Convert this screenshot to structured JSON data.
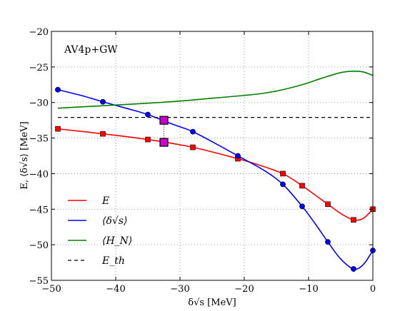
{
  "chart_data": {
    "type": "line",
    "title": "AV4p+GW",
    "xlabel": "δ√s [MeV]",
    "ylabel": "E, ⟨δ√s⟩ [MeV]",
    "xlim": [
      -50,
      0
    ],
    "ylim": [
      -55,
      -20
    ],
    "xticks": [
      -50,
      -40,
      -30,
      -20,
      -10,
      0
    ],
    "yticks": [
      -55,
      -50,
      -45,
      -40,
      -35,
      -30,
      -25,
      -20
    ],
    "grid": true,
    "legend_position": "lower-left",
    "series": [
      {
        "name": "E",
        "color": "#ff0000",
        "marker": "square",
        "x": [
          -49,
          -42,
          -35,
          -28,
          -21,
          -14,
          -11,
          -7,
          -3,
          0
        ],
        "y": [
          -33.7,
          -34.4,
          -35.2,
          -36.3,
          -37.9,
          -40.0,
          -41.7,
          -44.3,
          -46.5,
          -45.0
        ],
        "curve": {
          "x": [
            -49,
            -42,
            -35,
            -28,
            -21,
            -18,
            -14,
            -11,
            -9,
            -7,
            -5,
            -3,
            -1.5,
            0
          ],
          "y": [
            -33.7,
            -34.4,
            -35.2,
            -36.3,
            -37.9,
            -38.7,
            -40.0,
            -41.7,
            -43.0,
            -44.3,
            -45.6,
            -46.5,
            -46.3,
            -45.0
          ]
        }
      },
      {
        "name": "⟨δ√s⟩",
        "color": "#0000ff",
        "marker": "circle",
        "x": [
          -49,
          -42,
          -35,
          -28,
          -21,
          -14,
          -11,
          -7,
          -3,
          0
        ],
        "y": [
          -28.2,
          -29.9,
          -31.7,
          -34.1,
          -37.5,
          -41.5,
          -44.6,
          -49.6,
          -53.4,
          -50.8
        ],
        "curve": {
          "x": [
            -49,
            -45,
            -42,
            -38,
            -35,
            -31,
            -28,
            -24,
            -21,
            -17,
            -14,
            -11,
            -9,
            -7,
            -5,
            -3,
            -1.5,
            0
          ],
          "y": [
            -28.2,
            -29.1,
            -29.9,
            -30.9,
            -31.7,
            -33.1,
            -34.1,
            -36.0,
            -37.5,
            -39.5,
            -41.5,
            -44.6,
            -47.0,
            -49.6,
            -52.0,
            -53.4,
            -52.8,
            -50.8
          ]
        }
      },
      {
        "name": "⟨H_N⟩",
        "color": "#008000",
        "marker": "none",
        "x": [
          -49,
          -45,
          -40,
          -35,
          -30,
          -25,
          -20,
          -17,
          -14,
          -11,
          -8,
          -5,
          -3,
          -1.5,
          0
        ],
        "y": [
          -30.8,
          -30.6,
          -30.35,
          -30.1,
          -29.8,
          -29.4,
          -29.0,
          -28.7,
          -28.2,
          -27.5,
          -26.6,
          -25.8,
          -25.6,
          -25.7,
          -26.2
        ]
      },
      {
        "name": "E_th",
        "color": "#000000",
        "dashed": true,
        "x": [
          -49,
          0
        ],
        "y": [
          -32.1,
          -32.1
        ]
      }
    ],
    "highlight": {
      "x": -32.5,
      "y": [
        -32.5,
        -35.6
      ],
      "color": "#cc00cc"
    }
  }
}
